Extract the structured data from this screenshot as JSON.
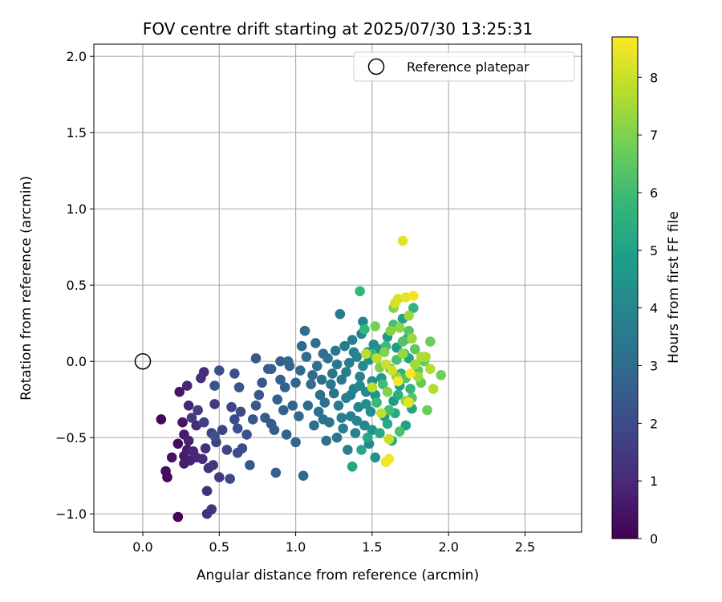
{
  "chart_data": {
    "type": "scatter",
    "title": "FOV centre drift starting at 2025/07/30 13:25:31",
    "xlabel": "Angular distance from reference (arcmin)",
    "ylabel": "Rotation from reference (arcmin)",
    "xlim": [
      -0.32,
      2.87
    ],
    "ylim": [
      -1.12,
      2.08
    ],
    "xticks": [
      0.0,
      0.5,
      1.0,
      1.5,
      2.0,
      2.5
    ],
    "xtick_labels": [
      "0.0",
      "0.5",
      "1.0",
      "1.5",
      "2.0",
      "2.5"
    ],
    "yticks": [
      -1.0,
      -0.5,
      0.0,
      0.5,
      1.0,
      1.5,
      2.0
    ],
    "ytick_labels": [
      "−1.0",
      "−0.5",
      "0.0",
      "0.5",
      "1.0",
      "1.5",
      "2.0"
    ],
    "grid": true,
    "legend": {
      "position": "top-right",
      "entries": [
        "Reference platepar"
      ]
    },
    "reference_point": {
      "x": 0.0,
      "y": 0.0,
      "label": "Reference platepar"
    },
    "colorbar": {
      "label": "Hours from first FF file",
      "range": [
        0,
        8.7
      ],
      "ticks": [
        0,
        1,
        2,
        3,
        4,
        5,
        6,
        7,
        8
      ],
      "tick_labels": [
        "0",
        "1",
        "2",
        "3",
        "4",
        "5",
        "6",
        "7",
        "8"
      ],
      "colormap": "viridis"
    },
    "points": [
      {
        "x": 0.12,
        "y": -0.38,
        "hours": 0.2
      },
      {
        "x": 0.15,
        "y": -0.72,
        "hours": 0.3
      },
      {
        "x": 0.16,
        "y": -0.76,
        "hours": 0.2
      },
      {
        "x": 0.19,
        "y": -0.63,
        "hours": 0.4
      },
      {
        "x": 0.23,
        "y": -0.54,
        "hours": 0.3
      },
      {
        "x": 0.23,
        "y": -1.02,
        "hours": 0.1
      },
      {
        "x": 0.24,
        "y": -0.2,
        "hours": 0.5
      },
      {
        "x": 0.26,
        "y": -0.4,
        "hours": 0.5
      },
      {
        "x": 0.27,
        "y": -0.48,
        "hours": 0.6
      },
      {
        "x": 0.27,
        "y": -0.62,
        "hours": 0.6
      },
      {
        "x": 0.27,
        "y": -0.67,
        "hours": 0.7
      },
      {
        "x": 0.29,
        "y": -0.58,
        "hours": 0.7
      },
      {
        "x": 0.3,
        "y": -0.52,
        "hours": 0.8
      },
      {
        "x": 0.31,
        "y": -0.65,
        "hours": 0.8
      },
      {
        "x": 0.3,
        "y": -0.29,
        "hours": 0.9
      },
      {
        "x": 0.29,
        "y": -0.16,
        "hours": 0.9
      },
      {
        "x": 0.33,
        "y": -0.59,
        "hours": 0.9
      },
      {
        "x": 0.35,
        "y": -0.63,
        "hours": 1.0
      },
      {
        "x": 0.35,
        "y": -0.42,
        "hours": 1.0
      },
      {
        "x": 0.38,
        "y": -0.11,
        "hours": 1.1
      },
      {
        "x": 0.4,
        "y": -0.07,
        "hours": 1.1
      },
      {
        "x": 0.39,
        "y": -0.64,
        "hours": 1.1
      },
      {
        "x": 0.41,
        "y": -0.57,
        "hours": 1.2
      },
      {
        "x": 0.42,
        "y": -0.85,
        "hours": 1.2
      },
      {
        "x": 0.42,
        "y": -1.0,
        "hours": 1.2
      },
      {
        "x": 0.43,
        "y": -0.7,
        "hours": 1.3
      },
      {
        "x": 0.45,
        "y": -0.97,
        "hours": 1.3
      },
      {
        "x": 0.46,
        "y": -0.68,
        "hours": 1.4
      },
      {
        "x": 0.47,
        "y": -0.28,
        "hours": 1.4
      },
      {
        "x": 0.5,
        "y": -0.76,
        "hours": 1.5
      },
      {
        "x": 0.32,
        "y": -0.37,
        "hours": 1.5
      },
      {
        "x": 0.36,
        "y": -0.32,
        "hours": 1.6
      },
      {
        "x": 0.4,
        "y": -0.4,
        "hours": 1.6
      },
      {
        "x": 0.45,
        "y": -0.47,
        "hours": 1.7
      },
      {
        "x": 0.48,
        "y": -0.53,
        "hours": 1.7
      },
      {
        "x": 0.52,
        "y": -0.45,
        "hours": 1.7
      },
      {
        "x": 0.55,
        "y": -0.58,
        "hours": 1.8
      },
      {
        "x": 0.58,
        "y": -0.3,
        "hours": 1.8
      },
      {
        "x": 0.6,
        "y": -0.38,
        "hours": 1.9
      },
      {
        "x": 0.57,
        "y": -0.77,
        "hours": 1.9
      },
      {
        "x": 0.62,
        "y": -0.6,
        "hours": 2.0
      },
      {
        "x": 0.64,
        "y": -0.33,
        "hours": 2.0
      },
      {
        "x": 0.65,
        "y": -0.57,
        "hours": 2.0
      },
      {
        "x": 0.68,
        "y": -0.48,
        "hours": 2.1
      },
      {
        "x": 0.62,
        "y": -0.44,
        "hours": 2.1
      },
      {
        "x": 0.5,
        "y": -0.06,
        "hours": 2.1
      },
      {
        "x": 0.47,
        "y": -0.16,
        "hours": 2.2
      },
      {
        "x": 0.47,
        "y": -0.49,
        "hours": 2.2
      },
      {
        "x": 0.6,
        "y": -0.08,
        "hours": 2.2
      },
      {
        "x": 0.63,
        "y": -0.17,
        "hours": 2.3
      },
      {
        "x": 0.7,
        "y": -0.68,
        "hours": 2.3
      },
      {
        "x": 0.72,
        "y": -0.38,
        "hours": 2.3
      },
      {
        "x": 0.74,
        "y": -0.29,
        "hours": 2.4
      },
      {
        "x": 0.76,
        "y": -0.22,
        "hours": 2.4
      },
      {
        "x": 0.78,
        "y": -0.14,
        "hours": 2.4
      },
      {
        "x": 0.8,
        "y": -0.37,
        "hours": 2.5
      },
      {
        "x": 0.82,
        "y": -0.05,
        "hours": 2.5
      },
      {
        "x": 0.84,
        "y": -0.41,
        "hours": 2.5
      },
      {
        "x": 0.86,
        "y": -0.45,
        "hours": 2.6
      },
      {
        "x": 0.87,
        "y": -0.73,
        "hours": 2.6
      },
      {
        "x": 0.88,
        "y": -0.25,
        "hours": 2.6
      },
      {
        "x": 0.9,
        "y": -0.12,
        "hours": 2.7
      },
      {
        "x": 0.92,
        "y": -0.32,
        "hours": 2.7
      },
      {
        "x": 0.94,
        "y": -0.48,
        "hours": 2.7
      },
      {
        "x": 0.96,
        "y": -0.03,
        "hours": 2.8
      },
      {
        "x": 0.98,
        "y": -0.29,
        "hours": 2.8
      },
      {
        "x": 1.0,
        "y": -0.53,
        "hours": 2.8
      },
      {
        "x": 1.02,
        "y": -0.36,
        "hours": 2.9
      },
      {
        "x": 1.04,
        "y": 0.1,
        "hours": 2.9
      },
      {
        "x": 1.05,
        "y": -0.75,
        "hours": 2.9
      },
      {
        "x": 1.06,
        "y": 0.2,
        "hours": 3.0
      },
      {
        "x": 1.08,
        "y": -0.29,
        "hours": 3.0
      },
      {
        "x": 1.1,
        "y": -0.15,
        "hours": 3.0
      },
      {
        "x": 1.12,
        "y": -0.42,
        "hours": 3.1
      },
      {
        "x": 1.14,
        "y": -0.03,
        "hours": 3.1
      },
      {
        "x": 1.16,
        "y": -0.22,
        "hours": 3.1
      },
      {
        "x": 1.18,
        "y": 0.05,
        "hours": 3.2
      },
      {
        "x": 1.2,
        "y": -0.52,
        "hours": 3.2
      },
      {
        "x": 0.74,
        "y": 0.02,
        "hours": 2.4
      },
      {
        "x": 0.84,
        "y": -0.05,
        "hours": 2.6
      },
      {
        "x": 0.9,
        "y": 0.0,
        "hours": 2.7
      },
      {
        "x": 0.93,
        "y": -0.17,
        "hours": 2.7
      },
      {
        "x": 0.95,
        "y": 0.0,
        "hours": 2.8
      },
      {
        "x": 1.0,
        "y": -0.14,
        "hours": 2.8
      },
      {
        "x": 1.03,
        "y": -0.06,
        "hours": 2.9
      },
      {
        "x": 1.07,
        "y": 0.03,
        "hours": 3.0
      },
      {
        "x": 1.11,
        "y": -0.09,
        "hours": 3.0
      },
      {
        "x": 1.13,
        "y": 0.12,
        "hours": 3.1
      },
      {
        "x": 1.15,
        "y": -0.33,
        "hours": 3.1
      },
      {
        "x": 1.17,
        "y": -0.12,
        "hours": 3.2
      },
      {
        "x": 1.19,
        "y": -0.27,
        "hours": 3.2
      },
      {
        "x": 1.21,
        "y": 0.02,
        "hours": 3.3
      },
      {
        "x": 1.22,
        "y": -0.4,
        "hours": 3.3
      },
      {
        "x": 1.24,
        "y": -0.08,
        "hours": 3.3
      },
      {
        "x": 1.25,
        "y": -0.21,
        "hours": 3.4
      },
      {
        "x": 1.26,
        "y": 0.07,
        "hours": 3.4
      },
      {
        "x": 1.27,
        "y": -0.5,
        "hours": 3.4
      },
      {
        "x": 1.28,
        "y": -0.29,
        "hours": 3.5
      },
      {
        "x": 1.29,
        "y": 0.31,
        "hours": 3.5
      },
      {
        "x": 1.3,
        "y": -0.12,
        "hours": 3.5
      },
      {
        "x": 1.31,
        "y": -0.44,
        "hours": 3.6
      },
      {
        "x": 1.32,
        "y": 0.1,
        "hours": 3.6
      },
      {
        "x": 1.33,
        "y": -0.24,
        "hours": 3.6
      },
      {
        "x": 1.34,
        "y": -0.58,
        "hours": 3.7
      },
      {
        "x": 1.35,
        "y": -0.01,
        "hours": 3.7
      },
      {
        "x": 1.36,
        "y": -0.36,
        "hours": 3.7
      },
      {
        "x": 1.37,
        "y": 0.14,
        "hours": 3.8
      },
      {
        "x": 1.38,
        "y": -0.18,
        "hours": 3.8
      },
      {
        "x": 1.39,
        "y": -0.47,
        "hours": 3.8
      },
      {
        "x": 1.4,
        "y": 0.03,
        "hours": 3.9
      },
      {
        "x": 1.41,
        "y": -0.3,
        "hours": 3.9
      },
      {
        "x": 1.42,
        "y": -0.1,
        "hours": 3.9
      },
      {
        "x": 1.43,
        "y": 0.18,
        "hours": 4.0
      },
      {
        "x": 1.44,
        "y": 0.26,
        "hours": 4.0
      },
      {
        "x": 1.45,
        "y": -0.42,
        "hours": 4.0
      },
      {
        "x": 1.46,
        "y": -0.2,
        "hours": 4.1
      },
      {
        "x": 1.47,
        "y": 0.06,
        "hours": 4.1
      },
      {
        "x": 1.48,
        "y": -0.54,
        "hours": 4.1
      },
      {
        "x": 1.49,
        "y": -0.33,
        "hours": 4.2
      },
      {
        "x": 1.5,
        "y": -0.13,
        "hours": 4.2
      },
      {
        "x": 1.51,
        "y": 0.11,
        "hours": 4.2
      },
      {
        "x": 1.52,
        "y": -0.63,
        "hours": 4.3
      },
      {
        "x": 1.18,
        "y": -0.38,
        "hours": 3.3
      },
      {
        "x": 1.23,
        "y": -0.15,
        "hours": 3.4
      },
      {
        "x": 1.27,
        "y": -0.02,
        "hours": 3.5
      },
      {
        "x": 1.3,
        "y": -0.37,
        "hours": 3.6
      },
      {
        "x": 1.33,
        "y": -0.07,
        "hours": 3.7
      },
      {
        "x": 1.36,
        "y": -0.22,
        "hours": 3.8
      },
      {
        "x": 1.38,
        "y": 0.06,
        "hours": 3.9
      },
      {
        "x": 1.4,
        "y": -0.39,
        "hours": 4.0
      },
      {
        "x": 1.42,
        "y": -0.16,
        "hours": 4.1
      },
      {
        "x": 1.44,
        "y": -0.03,
        "hours": 4.2
      },
      {
        "x": 1.46,
        "y": -0.28,
        "hours": 4.3
      },
      {
        "x": 1.48,
        "y": 0.01,
        "hours": 4.4
      },
      {
        "x": 1.5,
        "y": -0.45,
        "hours": 4.4
      },
      {
        "x": 1.52,
        "y": -0.22,
        "hours": 4.5
      },
      {
        "x": 1.54,
        "y": 0.08,
        "hours": 4.5
      },
      {
        "x": 1.56,
        "y": -0.11,
        "hours": 4.6
      },
      {
        "x": 1.58,
        "y": -0.36,
        "hours": 4.6
      },
      {
        "x": 1.6,
        "y": 0.16,
        "hours": 4.7
      },
      {
        "x": 1.62,
        "y": -0.05,
        "hours": 4.7
      },
      {
        "x": 1.64,
        "y": -0.26,
        "hours": 4.8
      },
      {
        "x": 1.66,
        "y": 0.09,
        "hours": 4.8
      },
      {
        "x": 1.68,
        "y": -0.16,
        "hours": 4.9
      },
      {
        "x": 1.7,
        "y": 0.28,
        "hours": 4.9
      },
      {
        "x": 1.72,
        "y": -0.42,
        "hours": 5.0
      },
      {
        "x": 1.74,
        "y": 0.02,
        "hours": 5.0
      },
      {
        "x": 1.76,
        "y": -0.31,
        "hours": 5.1
      },
      {
        "x": 1.37,
        "y": -0.69,
        "hours": 5.1
      },
      {
        "x": 1.43,
        "y": -0.58,
        "hours": 5.2
      },
      {
        "x": 1.47,
        "y": -0.5,
        "hours": 5.2
      },
      {
        "x": 1.55,
        "y": -0.47,
        "hours": 5.3
      },
      {
        "x": 1.6,
        "y": -0.41,
        "hours": 5.3
      },
      {
        "x": 1.63,
        "y": -0.52,
        "hours": 5.4
      },
      {
        "x": 1.65,
        "y": -0.34,
        "hours": 5.4
      },
      {
        "x": 1.67,
        "y": -0.22,
        "hours": 5.5
      },
      {
        "x": 1.69,
        "y": -0.08,
        "hours": 5.5
      },
      {
        "x": 1.71,
        "y": 0.05,
        "hours": 5.6
      },
      {
        "x": 1.73,
        "y": 0.15,
        "hours": 5.6
      },
      {
        "x": 1.75,
        "y": -0.18,
        "hours": 5.7
      },
      {
        "x": 1.77,
        "y": 0.35,
        "hours": 5.7
      },
      {
        "x": 1.42,
        "y": 0.46,
        "hours": 5.8
      },
      {
        "x": 1.45,
        "y": 0.21,
        "hours": 5.8
      },
      {
        "x": 1.5,
        "y": 0.05,
        "hours": 5.9
      },
      {
        "x": 1.53,
        "y": -0.27,
        "hours": 5.9
      },
      {
        "x": 1.57,
        "y": -0.15,
        "hours": 6.0
      },
      {
        "x": 1.59,
        "y": 0.1,
        "hours": 6.0
      },
      {
        "x": 1.61,
        "y": -0.32,
        "hours": 6.1
      },
      {
        "x": 1.64,
        "y": 0.24,
        "hours": 6.1
      },
      {
        "x": 1.66,
        "y": 0.01,
        "hours": 6.2
      },
      {
        "x": 1.68,
        "y": -0.46,
        "hours": 6.2
      },
      {
        "x": 1.7,
        "y": 0.13,
        "hours": 6.3
      },
      {
        "x": 1.72,
        "y": -0.11,
        "hours": 6.3
      },
      {
        "x": 1.74,
        "y": 0.2,
        "hours": 6.4
      },
      {
        "x": 1.76,
        "y": -0.24,
        "hours": 6.4
      },
      {
        "x": 1.78,
        "y": 0.08,
        "hours": 6.5
      },
      {
        "x": 1.8,
        "y": -0.06,
        "hours": 6.5
      },
      {
        "x": 1.82,
        "y": -0.14,
        "hours": 6.6
      },
      {
        "x": 1.84,
        "y": 0.0,
        "hours": 6.6
      },
      {
        "x": 1.86,
        "y": -0.32,
        "hours": 6.7
      },
      {
        "x": 1.88,
        "y": 0.13,
        "hours": 6.7
      },
      {
        "x": 1.95,
        "y": -0.09,
        "hours": 6.8
      },
      {
        "x": 1.52,
        "y": 0.23,
        "hours": 6.9
      },
      {
        "x": 1.55,
        "y": -0.04,
        "hours": 6.9
      },
      {
        "x": 1.58,
        "y": 0.06,
        "hours": 7.0
      },
      {
        "x": 1.6,
        "y": -0.2,
        "hours": 7.0
      },
      {
        "x": 1.62,
        "y": 0.2,
        "hours": 7.1
      },
      {
        "x": 1.64,
        "y": 0.35,
        "hours": 7.1
      },
      {
        "x": 1.66,
        "y": -0.1,
        "hours": 7.2
      },
      {
        "x": 1.68,
        "y": 0.22,
        "hours": 7.2
      },
      {
        "x": 1.7,
        "y": 0.05,
        "hours": 7.3
      },
      {
        "x": 1.72,
        "y": -0.26,
        "hours": 7.3
      },
      {
        "x": 1.74,
        "y": 0.3,
        "hours": 7.4
      },
      {
        "x": 1.76,
        "y": 0.15,
        "hours": 7.4
      },
      {
        "x": 1.78,
        "y": -0.02,
        "hours": 7.5
      },
      {
        "x": 1.8,
        "y": -0.1,
        "hours": 7.5
      },
      {
        "x": 1.82,
        "y": 0.03,
        "hours": 7.6
      },
      {
        "x": 1.85,
        "y": 0.03,
        "hours": 7.6
      },
      {
        "x": 1.88,
        "y": -0.05,
        "hours": 7.7
      },
      {
        "x": 1.9,
        "y": -0.18,
        "hours": 7.7
      },
      {
        "x": 1.46,
        "y": 0.05,
        "hours": 7.8
      },
      {
        "x": 1.5,
        "y": -0.17,
        "hours": 7.8
      },
      {
        "x": 1.53,
        "y": 0.02,
        "hours": 7.9
      },
      {
        "x": 1.56,
        "y": -0.34,
        "hours": 7.9
      },
      {
        "x": 1.59,
        "y": -0.02,
        "hours": 8.0
      },
      {
        "x": 1.61,
        "y": -0.51,
        "hours": 8.0
      },
      {
        "x": 1.63,
        "y": -0.06,
        "hours": 8.1
      },
      {
        "x": 1.65,
        "y": 0.38,
        "hours": 8.1
      },
      {
        "x": 1.67,
        "y": 0.41,
        "hours": 8.2
      },
      {
        "x": 1.7,
        "y": 0.79,
        "hours": 8.3
      },
      {
        "x": 1.72,
        "y": 0.42,
        "hours": 8.4
      },
      {
        "x": 1.74,
        "y": -0.27,
        "hours": 8.4
      },
      {
        "x": 1.77,
        "y": 0.43,
        "hours": 8.5
      },
      {
        "x": 1.59,
        "y": -0.66,
        "hours": 8.5
      },
      {
        "x": 1.61,
        "y": -0.64,
        "hours": 8.6
      },
      {
        "x": 1.67,
        "y": -0.13,
        "hours": 8.6
      },
      {
        "x": 1.75,
        "y": -0.08,
        "hours": 8.7
      }
    ]
  }
}
